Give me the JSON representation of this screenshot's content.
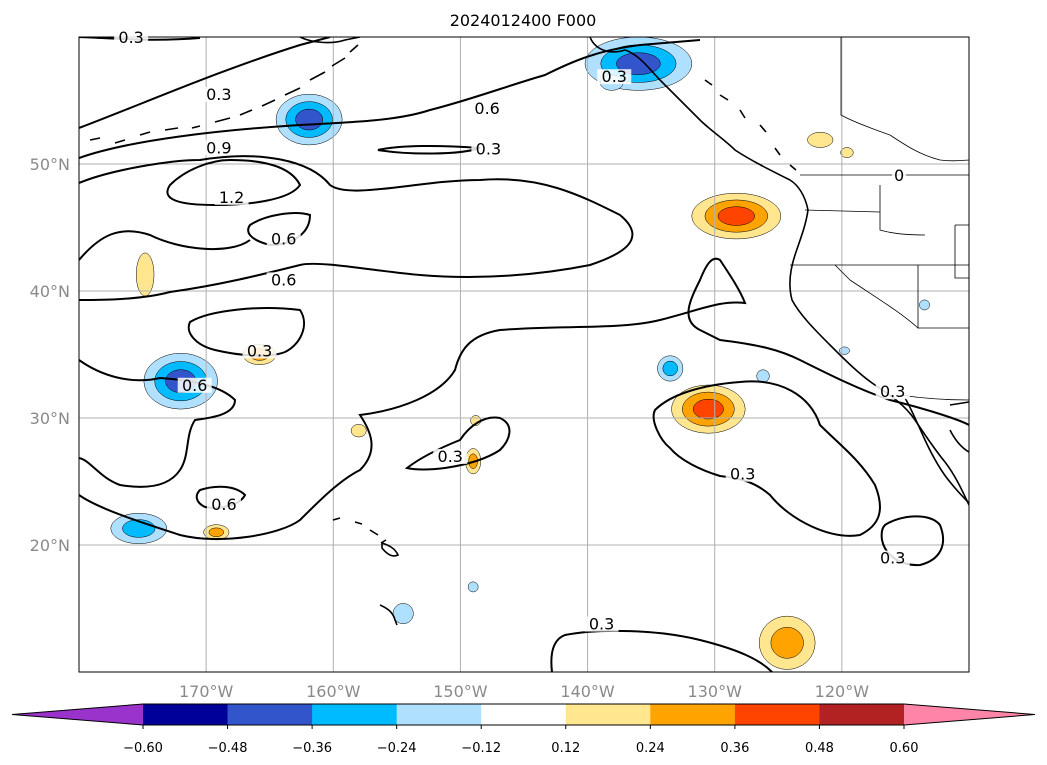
{
  "title": "2024012400 F000",
  "map": {
    "lon_range": [
      -180,
      -110
    ],
    "lat_range": [
      10,
      60
    ],
    "lon_ticks": [
      {
        "value": -170,
        "label": "170°W"
      },
      {
        "value": -160,
        "label": "160°W"
      },
      {
        "value": -150,
        "label": "150°W"
      },
      {
        "value": -140,
        "label": "140°W"
      },
      {
        "value": -130,
        "label": "130°W"
      },
      {
        "value": -120,
        "label": "120°W"
      }
    ],
    "lat_ticks": [
      {
        "value": 20,
        "label": "20°N"
      },
      {
        "value": 30,
        "label": "30°N"
      },
      {
        "value": 40,
        "label": "40°N"
      },
      {
        "value": 50,
        "label": "50°N"
      }
    ],
    "contour_labels": [
      {
        "text": "0.3",
        "lon": -175.9,
        "lat": 59.7
      },
      {
        "text": "0.3",
        "lon": -169.0,
        "lat": 55.2
      },
      {
        "text": "0.6",
        "lon": -147.9,
        "lat": 54.1
      },
      {
        "text": "0.9",
        "lon": -169.0,
        "lat": 51.0
      },
      {
        "text": "0.3",
        "lon": -147.8,
        "lat": 50.9
      },
      {
        "text": "1.2",
        "lon": -168.0,
        "lat": 47.1
      },
      {
        "text": "0.6",
        "lon": -163.9,
        "lat": 43.8
      },
      {
        "text": "0.6",
        "lon": -163.9,
        "lat": 40.6
      },
      {
        "text": "0.3",
        "lon": -137.9,
        "lat": 56.6
      },
      {
        "text": "0.3",
        "lon": -165.8,
        "lat": 35.0
      },
      {
        "text": "0.6",
        "lon": -170.9,
        "lat": 32.3
      },
      {
        "text": "0.6",
        "lon": -168.6,
        "lat": 22.9
      },
      {
        "text": "0.3",
        "lon": -150.8,
        "lat": 26.7
      },
      {
        "text": "0.3",
        "lon": -127.8,
        "lat": 25.3
      },
      {
        "text": "0.3",
        "lon": -116.0,
        "lat": 18.7
      },
      {
        "text": "0.3",
        "lon": -138.9,
        "lat": 13.5
      },
      {
        "text": "0.3",
        "lon": -116.0,
        "lat": 31.8
      },
      {
        "text": "0",
        "lon": -115.5,
        "lat": 48.8
      }
    ],
    "anomalies": [
      {
        "lon": -161.9,
        "lat": 53.5,
        "rx": 2.6,
        "ry": 2.0,
        "value": -0.45
      },
      {
        "lon": -136.0,
        "lat": 57.9,
        "rx": 4.2,
        "ry": 2.1,
        "value": -0.45
      },
      {
        "lon": -138.1,
        "lat": 56.4,
        "rx": 0.9,
        "ry": 0.6,
        "value": -0.2
      },
      {
        "lon": -172.0,
        "lat": 32.9,
        "rx": 2.9,
        "ry": 2.2,
        "value": -0.45
      },
      {
        "lon": -175.3,
        "lat": 21.3,
        "rx": 2.2,
        "ry": 1.2,
        "value": -0.33
      },
      {
        "lon": -133.5,
        "lat": 33.9,
        "rx": 1.0,
        "ry": 1.0,
        "value": -0.3
      },
      {
        "lon": -154.5,
        "lat": 14.6,
        "rx": 0.8,
        "ry": 0.8,
        "value": -0.15
      },
      {
        "lon": -149.0,
        "lat": 16.7,
        "rx": 0.4,
        "ry": 0.4,
        "value": -0.15
      },
      {
        "lon": -126.2,
        "lat": 33.3,
        "rx": 0.5,
        "ry": 0.5,
        "value": -0.15
      },
      {
        "lon": -113.5,
        "lat": 38.9,
        "rx": 0.4,
        "ry": 0.4,
        "value": -0.15
      },
      {
        "lon": -119.8,
        "lat": 35.3,
        "rx": 0.4,
        "ry": 0.3,
        "value": -0.15
      },
      {
        "lon": -128.3,
        "lat": 45.9,
        "rx": 3.5,
        "ry": 1.8,
        "value": 0.42
      },
      {
        "lon": -130.5,
        "lat": 30.7,
        "rx": 2.9,
        "ry": 1.9,
        "value": 0.4
      },
      {
        "lon": -124.3,
        "lat": 12.3,
        "rx": 2.2,
        "ry": 2.1,
        "value": 0.28
      },
      {
        "lon": -174.8,
        "lat": 41.3,
        "rx": 0.7,
        "ry": 1.7,
        "value": 0.2
      },
      {
        "lon": -165.8,
        "lat": 35.0,
        "rx": 1.3,
        "ry": 0.8,
        "value": 0.28
      },
      {
        "lon": -149.0,
        "lat": 26.6,
        "rx": 0.6,
        "ry": 1.0,
        "value": 0.25
      },
      {
        "lon": -148.8,
        "lat": 29.8,
        "rx": 0.4,
        "ry": 0.4,
        "value": 0.22
      },
      {
        "lon": -158.0,
        "lat": 29.0,
        "rx": 0.6,
        "ry": 0.5,
        "value": 0.22
      },
      {
        "lon": -169.2,
        "lat": 21.0,
        "rx": 1.0,
        "ry": 0.6,
        "value": 0.25
      },
      {
        "lon": -121.7,
        "lat": 51.9,
        "rx": 1.0,
        "ry": 0.6,
        "value": 0.22
      },
      {
        "lon": -119.6,
        "lat": 50.9,
        "rx": 0.5,
        "ry": 0.4,
        "value": 0.22
      }
    ]
  },
  "colorbar": {
    "levels": [
      "-0.60",
      "-0.48",
      "-0.36",
      "-0.24",
      "-0.12",
      "0.12",
      "0.24",
      "0.36",
      "0.48",
      "0.60"
    ],
    "colors": [
      "#9933cc",
      "#000099",
      "#3355cc",
      "#00bbff",
      "#b0e0ff",
      "#ffffff",
      "#ffe68f",
      "#ffa300",
      "#ff4400",
      "#b22222",
      "#ff85a8"
    ]
  }
}
